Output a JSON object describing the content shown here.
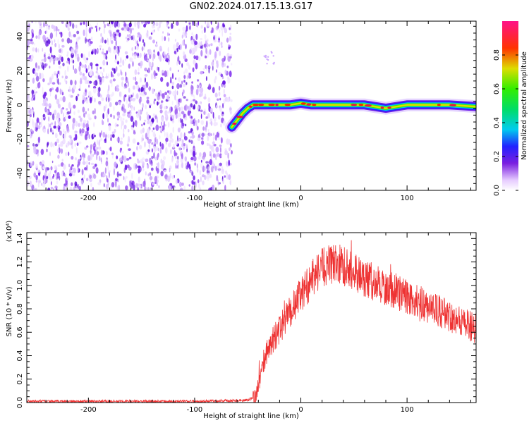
{
  "title": "GN02.2024.017.15.13.G17",
  "chart_data": [
    {
      "type": "heatmap",
      "xlabel": "Height of straight line (km)",
      "ylabel": "Frequency (Hz)",
      "xlim": [
        -258,
        165
      ],
      "ylim": [
        -50,
        49
      ],
      "xticks": [
        -200,
        -100,
        0,
        100
      ],
      "yticks": [
        -40,
        -20,
        0,
        20,
        40
      ],
      "noise_region_x": [
        -258,
        -65
      ],
      "ridge": {
        "x": [
          -65,
          -60,
          -55,
          -50,
          -45,
          -40,
          -30,
          -20,
          -10,
          0,
          10,
          20,
          40,
          60,
          80,
          100,
          120,
          140,
          165
        ],
        "freq": [
          -13,
          -9,
          -5,
          -2,
          0,
          0,
          0,
          0,
          0,
          1,
          0,
          0,
          0,
          0,
          -2,
          0,
          0,
          0,
          -1
        ]
      },
      "colorbar": {
        "label": "Normalized spectral amplitude",
        "range": [
          0,
          1
        ],
        "ticks": [
          0.0,
          0.2,
          0.4,
          0.6,
          0.8
        ],
        "tick_labels": [
          "0.0",
          "0.2",
          "0.4",
          "0.6",
          "0.8"
        ]
      }
    },
    {
      "type": "line",
      "xlabel": "Height of straight line (km)",
      "ylabel": "SNR (10 * v/v)",
      "y_multiplier": "(x10⁴)",
      "xlim": [
        -258,
        165
      ],
      "ylim": [
        0,
        1.45
      ],
      "xticks": [
        -200,
        -100,
        0,
        100
      ],
      "yticks": [
        0.0,
        0.2,
        0.4,
        0.6,
        0.8,
        1.0,
        1.2,
        1.4
      ],
      "ytick_labels": [
        "0.0",
        "0.2",
        "0.4",
        "0.6",
        "0.8",
        "1.0",
        "1.2",
        "1.4"
      ],
      "color": "#ee3333",
      "series": [
        {
          "x": [
            -258,
            -200,
            -100,
            -50,
            -43,
            -38,
            -35,
            -30,
            -25,
            -20,
            -15,
            -10,
            -5,
            0,
            5,
            10,
            15,
            20,
            25,
            30,
            35,
            40,
            50,
            60,
            70,
            80,
            90,
            100,
            110,
            120,
            130,
            140,
            150,
            160,
            165
          ],
          "values": [
            0.01,
            0.01,
            0.01,
            0.02,
            0.05,
            0.2,
            0.35,
            0.48,
            0.55,
            0.62,
            0.7,
            0.78,
            0.85,
            0.92,
            0.98,
            1.05,
            1.1,
            1.15,
            1.17,
            1.18,
            1.18,
            1.17,
            1.12,
            1.06,
            1.02,
            0.98,
            0.95,
            0.9,
            0.86,
            0.82,
            0.78,
            0.74,
            0.7,
            0.65,
            0.63
          ]
        }
      ]
    }
  ]
}
